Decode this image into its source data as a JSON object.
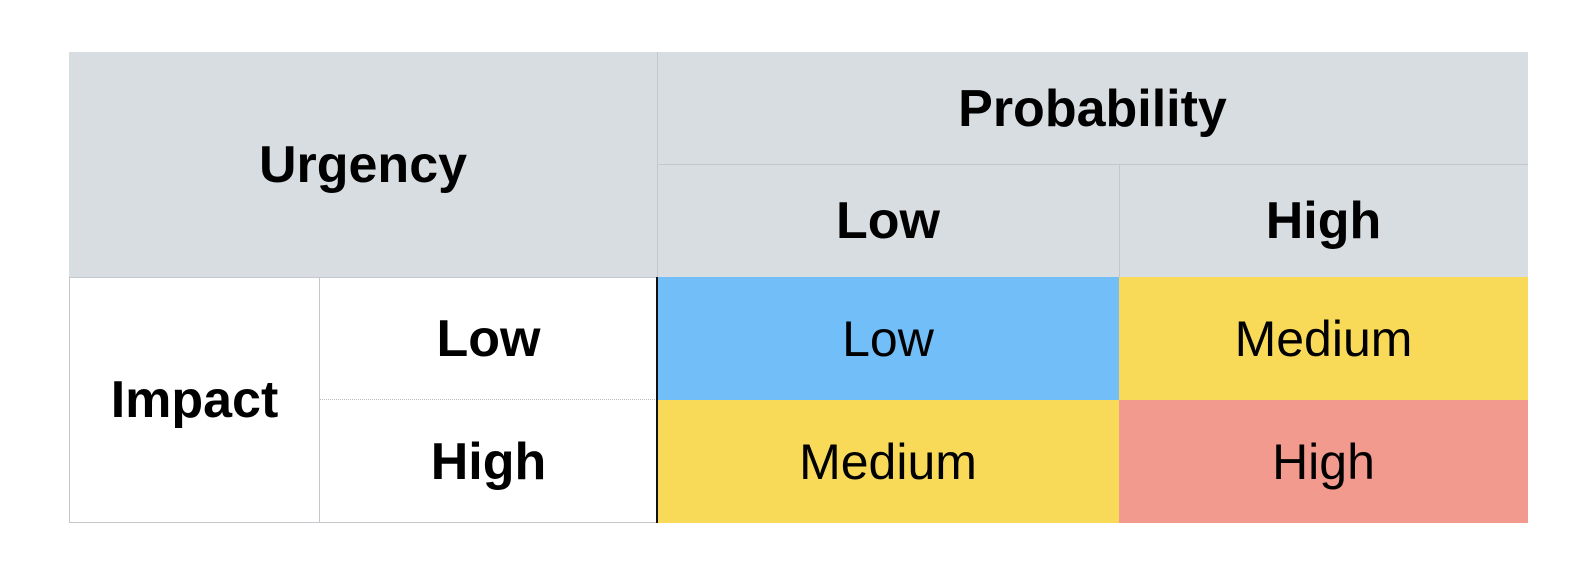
{
  "matrix": {
    "corner_label": "Urgency",
    "column_group_label": "Probability",
    "row_group_label": "Impact",
    "columns": [
      "Low",
      "High"
    ],
    "rows": [
      "Low",
      "High"
    ],
    "cells": [
      [
        "Low",
        "Medium"
      ],
      [
        "Medium",
        "High"
      ]
    ],
    "colors": {
      "header_bg": "#d8dde1",
      "low": "#72bef8",
      "medium": "#f8da58",
      "high": "#f29a8d"
    }
  }
}
